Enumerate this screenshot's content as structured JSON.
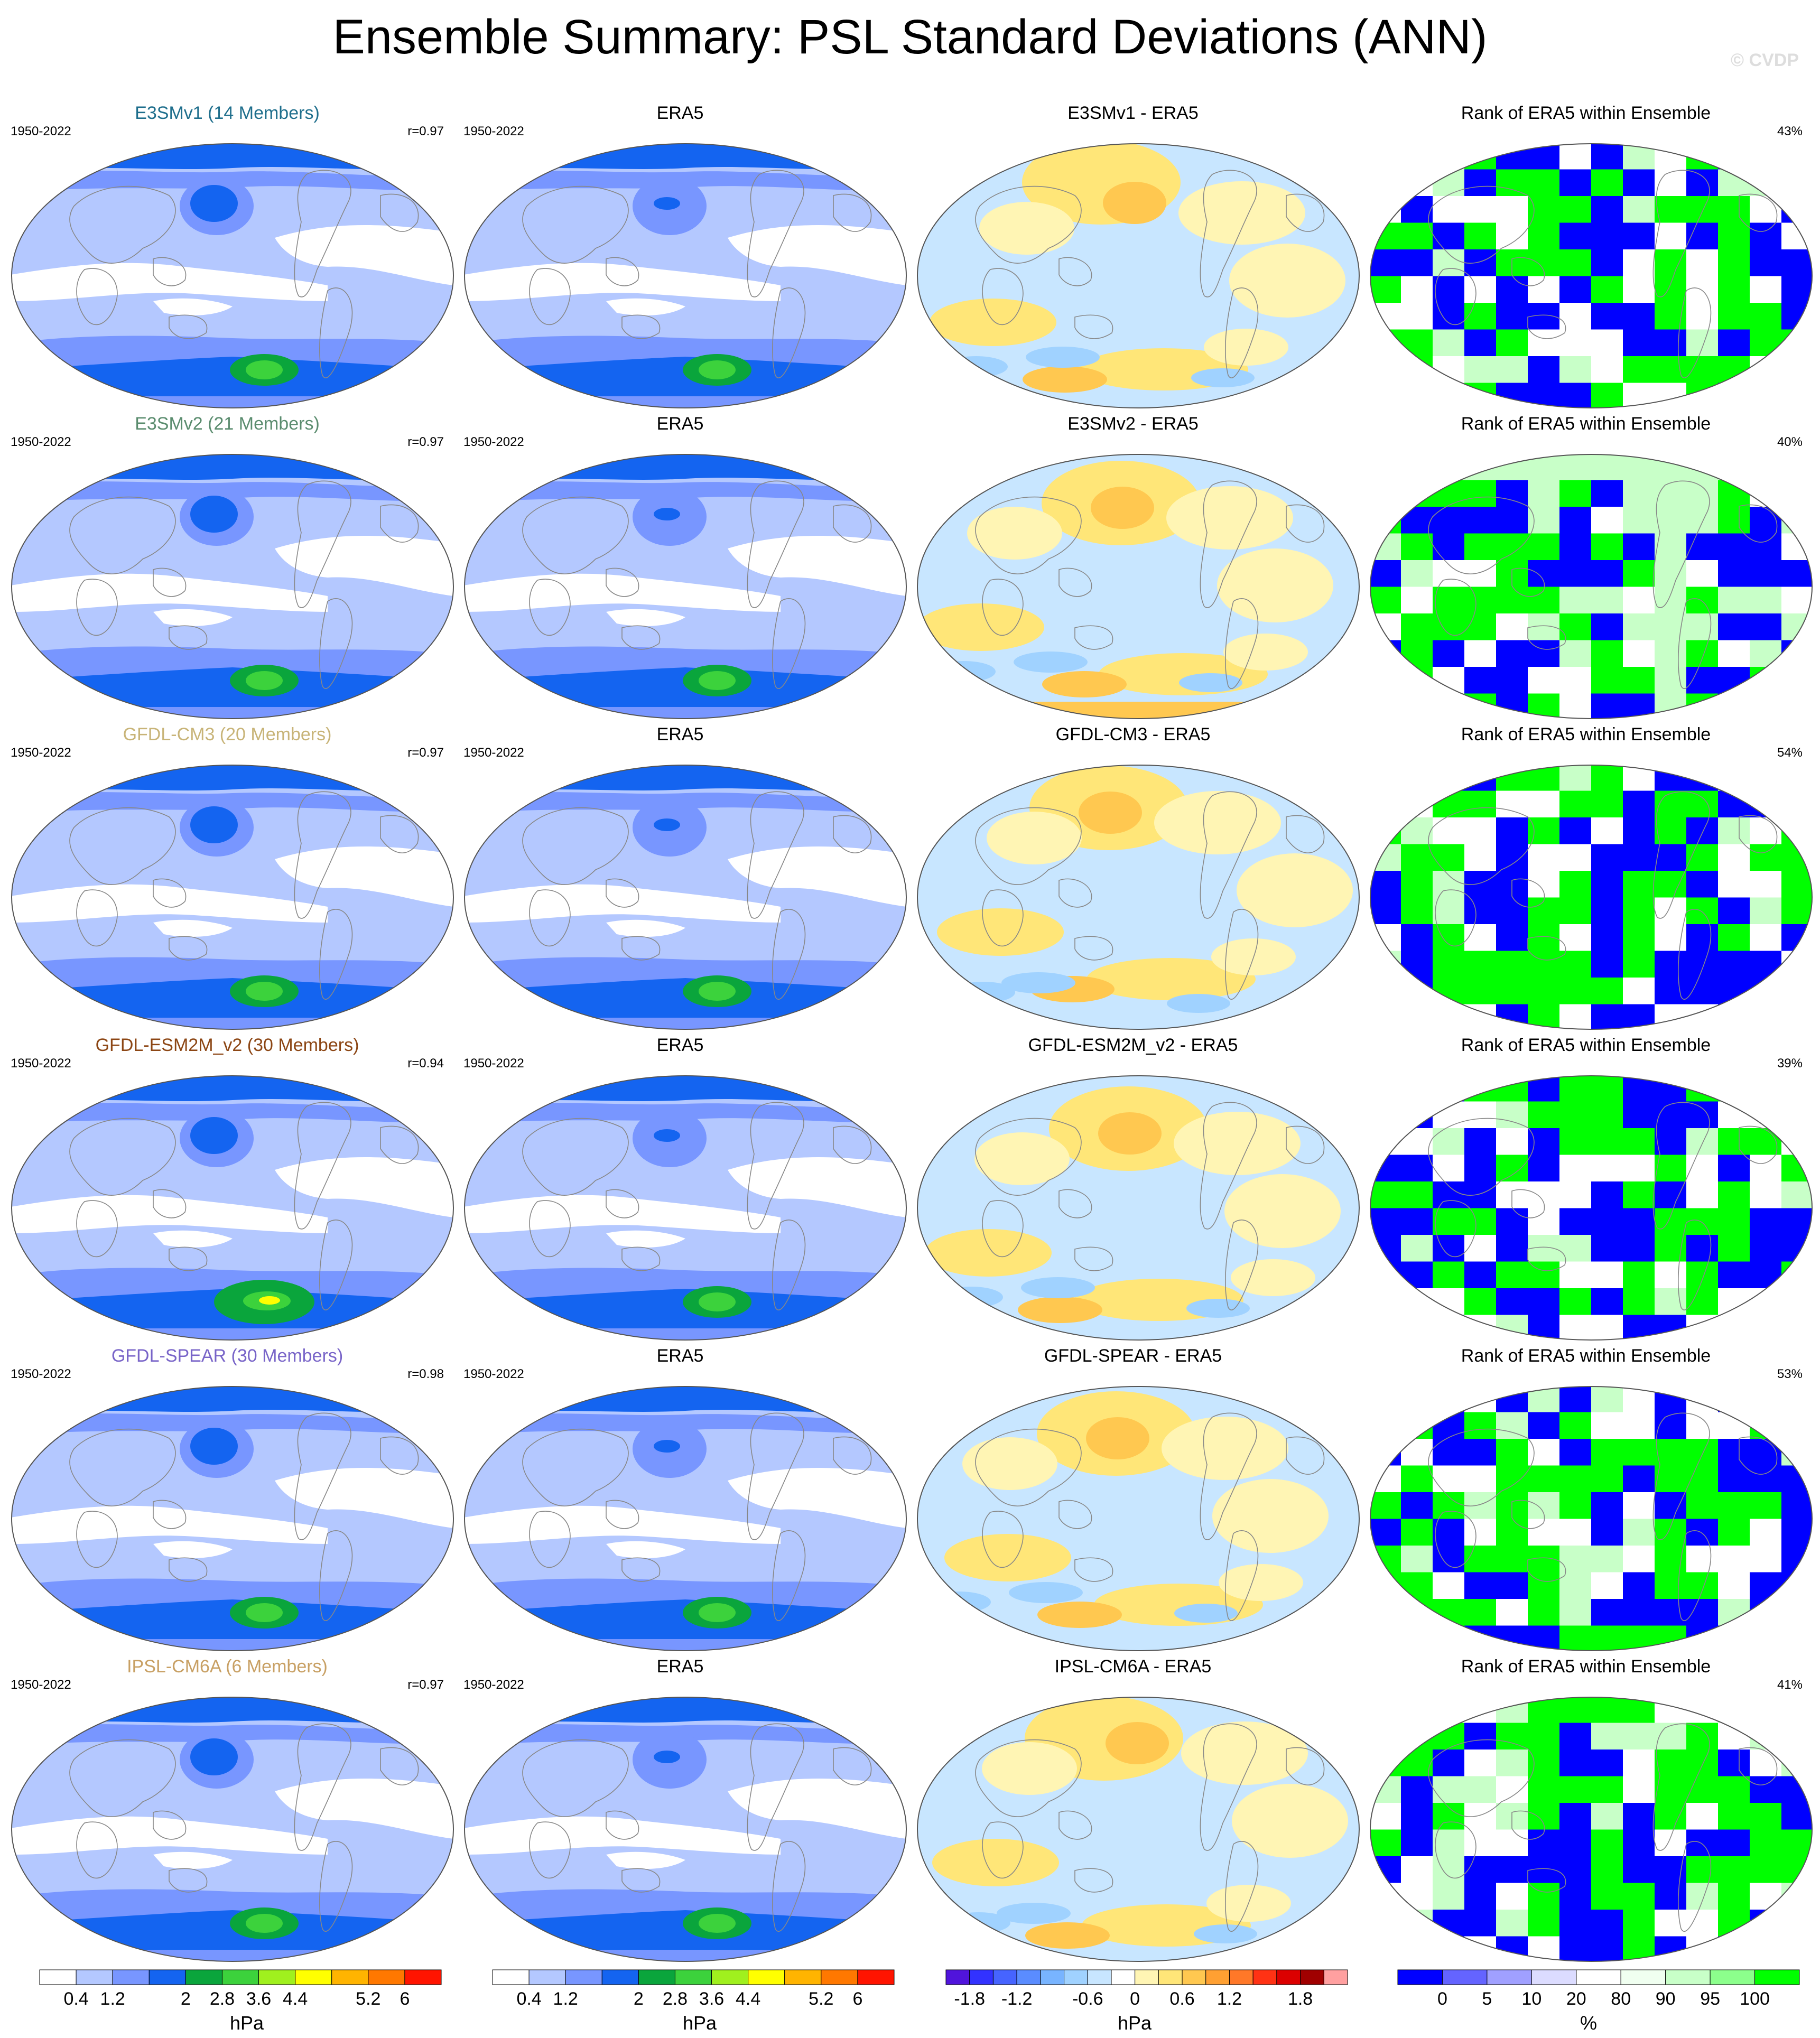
{
  "title": "Ensemble Summary: PSL Standard Deviations (ANN)",
  "watermark": "© CVDP",
  "colors": {
    "std_levels": [
      "#ffffff",
      "#b4c8ff",
      "#7896ff",
      "#1464f0",
      "#0aa53c",
      "#3cd23c",
      "#a0f01e",
      "#ffff00",
      "#ffb400",
      "#ff7800",
      "#ff1400"
    ],
    "diff_levels": [
      "#5014dc",
      "#3232ff",
      "#4664ff",
      "#5a8cff",
      "#78b4ff",
      "#a0d2ff",
      "#c8e6ff",
      "#ffffff",
      "#fff5b4",
      "#ffe678",
      "#ffc850",
      "#ffa032",
      "#ff7828",
      "#ff3214",
      "#dc0000",
      "#a00000",
      "#ffa0a0"
    ],
    "rank_levels": [
      "#0000ff",
      "#6464ff",
      "#a0a0ff",
      "#dcdcff",
      "#ffffff",
      "#f0fff0",
      "#c8ffc8",
      "#8cff8c",
      "#00ff00"
    ]
  },
  "rows": [
    {
      "model": "E3SMv1 (14 Members)",
      "model_color": "#1e6e8c",
      "period": "1950-2022",
      "r": "r=0.97",
      "diff_title": "E3SMv1 - ERA5",
      "rank_pct": "43%",
      "obs_title": "ERA5",
      "rank_title": "Rank of ERA5 within Ensemble"
    },
    {
      "model": "E3SMv2 (21 Members)",
      "model_color": "#5a8c6e",
      "period": "1950-2022",
      "r": "r=0.97",
      "diff_title": "E3SMv2 - ERA5",
      "rank_pct": "40%",
      "obs_title": "ERA5",
      "rank_title": "Rank of ERA5 within Ensemble"
    },
    {
      "model": "GFDL-CM3 (20 Members)",
      "model_color": "#c8b478",
      "period": "1950-2022",
      "r": "r=0.97",
      "diff_title": "GFDL-CM3 - ERA5",
      "rank_pct": "54%",
      "obs_title": "ERA5",
      "rank_title": "Rank of ERA5 within Ensemble"
    },
    {
      "model": "GFDL-ESM2M_v2 (30 Members)",
      "model_color": "#8c4614",
      "period": "1950-2022",
      "r": "r=0.94",
      "diff_title": "GFDL-ESM2M_v2 - ERA5",
      "rank_pct": "39%",
      "obs_title": "ERA5",
      "rank_title": "Rank of ERA5 within Ensemble"
    },
    {
      "model": "GFDL-SPEAR (30 Members)",
      "model_color": "#7864c8",
      "period": "1950-2022",
      "r": "r=0.98",
      "diff_title": "GFDL-SPEAR - ERA5",
      "rank_pct": "53%",
      "obs_title": "ERA5",
      "rank_title": "Rank of ERA5 within Ensemble"
    },
    {
      "model": "IPSL-CM6A (6 Members)",
      "model_color": "#c8a064",
      "period": "1950-2022",
      "r": "r=0.97",
      "diff_title": "IPSL-CM6A - ERA5",
      "rank_pct": "41%",
      "obs_title": "ERA5",
      "rank_title": "Rank of ERA5 within Ensemble"
    }
  ],
  "colorbars": {
    "std": {
      "labels": [
        "0.4",
        "1.2",
        "2",
        "2.8",
        "3.6",
        "4.4",
        "5.2",
        "6"
      ],
      "unit": "hPa"
    },
    "diff": {
      "labels": [
        "-1.8",
        "-1.2",
        "-0.6",
        "0",
        "0.6",
        "1.2",
        "1.8"
      ],
      "unit": "hPa"
    },
    "rank": {
      "labels": [
        "0",
        "5",
        "10",
        "20",
        "80",
        "90",
        "95",
        "100"
      ],
      "unit": "%"
    }
  }
}
